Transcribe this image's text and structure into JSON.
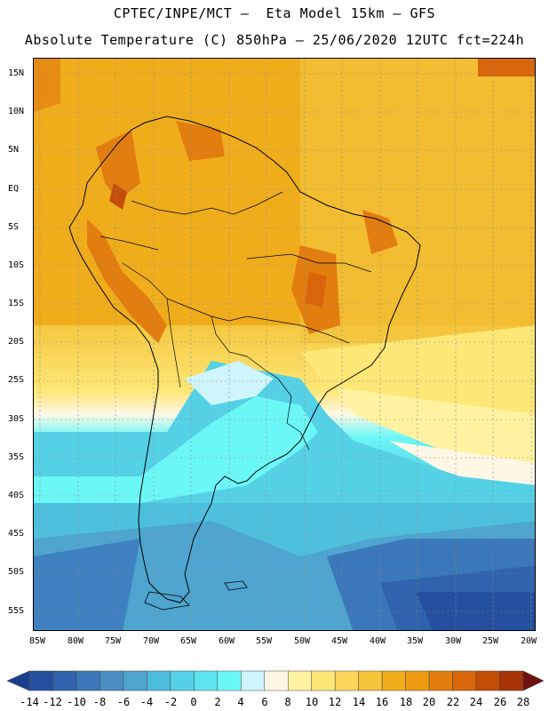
{
  "header": {
    "line1": "CPTEC/INPE/MCT –  Eta Model 15km – GFS",
    "line2": "Absolute Temperature (C) 850hPa – 25/06/2020 12UTC fct=224h"
  },
  "map": {
    "latitude_labels": [
      "15N",
      "10N",
      "5N",
      "EQ",
      "5S",
      "10S",
      "15S",
      "20S",
      "25S",
      "30S",
      "35S",
      "40S",
      "45S",
      "50S",
      "55S"
    ],
    "longitude_labels": [
      "85W",
      "80W",
      "75W",
      "70W",
      "65W",
      "60W",
      "55W",
      "50W",
      "45W",
      "40W",
      "35W",
      "30W",
      "25W",
      "20W"
    ]
  },
  "colorbar": {
    "labels": [
      "-14",
      "-12",
      "-10",
      "-8",
      "-6",
      "-4",
      "-2",
      "0",
      "2",
      "4",
      "6",
      "8",
      "10",
      "12",
      "14",
      "16",
      "18",
      "20",
      "22",
      "24",
      "26",
      "28"
    ],
    "colors": [
      "#1a3f8f",
      "#25509f",
      "#2f63ad",
      "#3b78b9",
      "#4a8ec4",
      "#4ea5cf",
      "#4cbcdc",
      "#55d1e6",
      "#5ee4ef",
      "#6cf7f7",
      "#cdf5fb",
      "#fff7e6",
      "#fff2a0",
      "#fde776",
      "#f9d65a",
      "#f3c33a",
      "#efad1c",
      "#eb9a12",
      "#e27d0f",
      "#d9650b",
      "#c44d08",
      "#a63406",
      "#861f08",
      "#6e1212"
    ]
  }
}
